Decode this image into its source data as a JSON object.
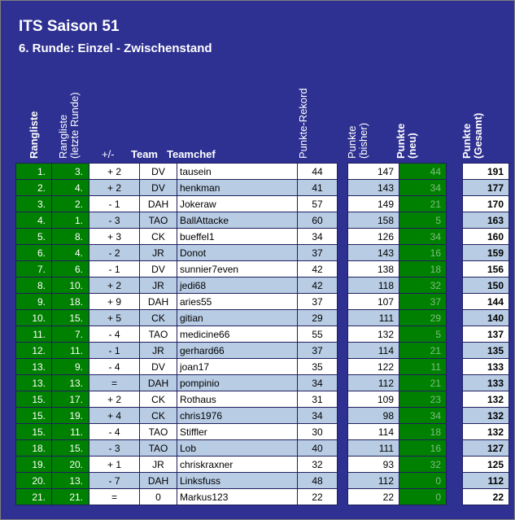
{
  "title": "ITS Saison 51",
  "subtitle": "6. Runde: Einzel - Zwischenstand",
  "headers": {
    "rangliste": "Rangliste",
    "rangliste_letzte_a": "Rangliste",
    "rangliste_letzte_b": "(letzte Runde)",
    "plusminus": "+/-",
    "team": "Team",
    "teamchef": "Teamchef",
    "rekord": "Punkte-Rekord",
    "bisher_a": "Punkte",
    "bisher_b": "(bisher)",
    "neu_a": "Punkte",
    "neu_b": "(neu)",
    "gesamt_a": "Punkte",
    "gesamt_b": "(Gesamt)"
  },
  "colors": {
    "background": "#2e3192",
    "rank_green": "#008000",
    "row_alt": "#b8cce4",
    "row_white": "#ffffff"
  },
  "rows": [
    {
      "rank": "1.",
      "prev": "3.",
      "diff": "+ 2",
      "team": "DV",
      "chef": "tausein",
      "rekord": "44",
      "bisher": "147",
      "neu": "44",
      "gesamt": "191"
    },
    {
      "rank": "2.",
      "prev": "4.",
      "diff": "+ 2",
      "team": "DV",
      "chef": "henkman",
      "rekord": "41",
      "bisher": "143",
      "neu": "34",
      "gesamt": "177"
    },
    {
      "rank": "3.",
      "prev": "2.",
      "diff": "- 1",
      "team": "DAH",
      "chef": "Jokeraw",
      "rekord": "57",
      "bisher": "149",
      "neu": "21",
      "gesamt": "170"
    },
    {
      "rank": "4.",
      "prev": "1.",
      "diff": "- 3",
      "team": "TAO",
      "chef": "BallAttacke",
      "rekord": "60",
      "bisher": "158",
      "neu": "5",
      "gesamt": "163"
    },
    {
      "rank": "5.",
      "prev": "8.",
      "diff": "+ 3",
      "team": "CK",
      "chef": "bueffel1",
      "rekord": "34",
      "bisher": "126",
      "neu": "34",
      "gesamt": "160"
    },
    {
      "rank": "6.",
      "prev": "4.",
      "diff": "- 2",
      "team": "JR",
      "chef": "Donot",
      "rekord": "37",
      "bisher": "143",
      "neu": "16",
      "gesamt": "159"
    },
    {
      "rank": "7.",
      "prev": "6.",
      "diff": "- 1",
      "team": "DV",
      "chef": "sunnier7even",
      "rekord": "42",
      "bisher": "138",
      "neu": "18",
      "gesamt": "156"
    },
    {
      "rank": "8.",
      "prev": "10.",
      "diff": "+ 2",
      "team": "JR",
      "chef": "jedi68",
      "rekord": "42",
      "bisher": "118",
      "neu": "32",
      "gesamt": "150"
    },
    {
      "rank": "9.",
      "prev": "18.",
      "diff": "+ 9",
      "team": "DAH",
      "chef": "aries55",
      "rekord": "37",
      "bisher": "107",
      "neu": "37",
      "gesamt": "144"
    },
    {
      "rank": "10.",
      "prev": "15.",
      "diff": "+ 5",
      "team": "CK",
      "chef": "gitian",
      "rekord": "29",
      "bisher": "111",
      "neu": "29",
      "gesamt": "140"
    },
    {
      "rank": "11.",
      "prev": "7.",
      "diff": "- 4",
      "team": "TAO",
      "chef": "medicine66",
      "rekord": "55",
      "bisher": "132",
      "neu": "5",
      "gesamt": "137"
    },
    {
      "rank": "12.",
      "prev": "11.",
      "diff": "- 1",
      "team": "JR",
      "chef": "gerhard66",
      "rekord": "37",
      "bisher": "114",
      "neu": "21",
      "gesamt": "135"
    },
    {
      "rank": "13.",
      "prev": "9.",
      "diff": "- 4",
      "team": "DV",
      "chef": "joan17",
      "rekord": "35",
      "bisher": "122",
      "neu": "11",
      "gesamt": "133"
    },
    {
      "rank": "13.",
      "prev": "13.",
      "diff": "=",
      "team": "DAH",
      "chef": "pompinio",
      "rekord": "34",
      "bisher": "112",
      "neu": "21",
      "gesamt": "133"
    },
    {
      "rank": "15.",
      "prev": "17.",
      "diff": "+ 2",
      "team": "CK",
      "chef": "Rothaus",
      "rekord": "31",
      "bisher": "109",
      "neu": "23",
      "gesamt": "132"
    },
    {
      "rank": "15.",
      "prev": "19.",
      "diff": "+ 4",
      "team": "CK",
      "chef": "chris1976",
      "rekord": "34",
      "bisher": "98",
      "neu": "34",
      "gesamt": "132"
    },
    {
      "rank": "15.",
      "prev": "11.",
      "diff": "- 4",
      "team": "TAO",
      "chef": "Stiffler",
      "rekord": "30",
      "bisher": "114",
      "neu": "18",
      "gesamt": "132"
    },
    {
      "rank": "18.",
      "prev": "15.",
      "diff": "- 3",
      "team": "TAO",
      "chef": "Lob",
      "rekord": "40",
      "bisher": "111",
      "neu": "16",
      "gesamt": "127"
    },
    {
      "rank": "19.",
      "prev": "20.",
      "diff": "+ 1",
      "team": "JR",
      "chef": "chriskraxner",
      "rekord": "32",
      "bisher": "93",
      "neu": "32",
      "gesamt": "125"
    },
    {
      "rank": "20.",
      "prev": "13.",
      "diff": "- 7",
      "team": "DAH",
      "chef": "Linksfuss",
      "rekord": "48",
      "bisher": "112",
      "neu": "0",
      "gesamt": "112"
    },
    {
      "rank": "21.",
      "prev": "21.",
      "diff": "=",
      "team": "0",
      "chef": "Markus123",
      "rekord": "22",
      "bisher": "22",
      "neu": "0",
      "gesamt": "22"
    }
  ]
}
